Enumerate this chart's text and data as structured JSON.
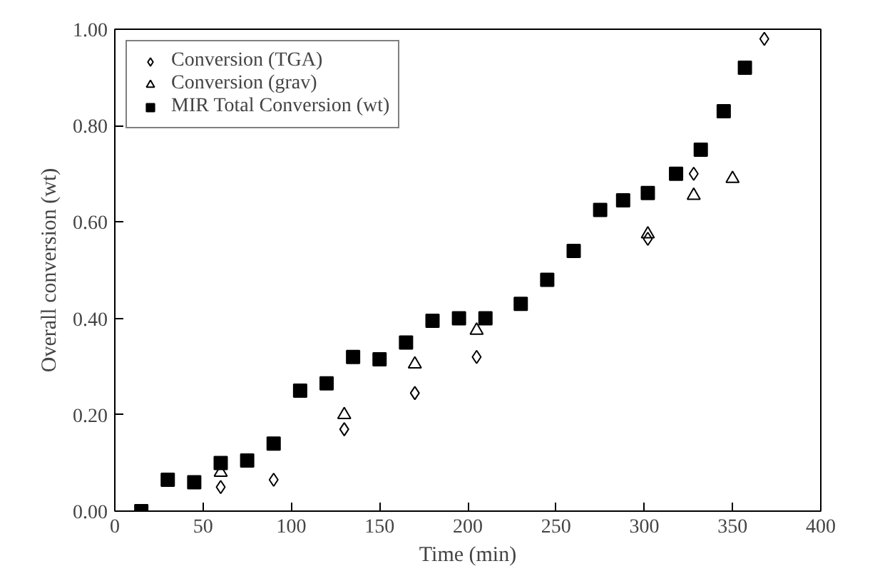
{
  "chart_data": {
    "type": "scatter",
    "xlabel": "Time (min)",
    "ylabel": "Overall conversion (wt)",
    "xlim": [
      0,
      400
    ],
    "ylim": [
      0,
      1
    ],
    "xticks": [
      0,
      50,
      100,
      150,
      200,
      250,
      300,
      350,
      400
    ],
    "yticks": [
      {
        "value": 0,
        "label": "0.00"
      },
      {
        "value": 0.2,
        "label": "0.20"
      },
      {
        "value": 0.4,
        "label": "0.40"
      },
      {
        "value": 0.6,
        "label": "0.60"
      },
      {
        "value": 0.8,
        "label": "0.80"
      },
      {
        "value": 1,
        "label": "1.00"
      }
    ],
    "grid": false,
    "legend": "top left",
    "series": [
      {
        "name": "Conversion (TGA)",
        "color": "#000000",
        "marker": "diamond",
        "x": [
          60,
          90,
          130,
          170,
          205,
          302,
          328,
          368
        ],
        "values": [
          0.05,
          0.065,
          0.17,
          0.245,
          0.32,
          0.565,
          0.7,
          0.98
        ]
      },
      {
        "name": "Conversion (grav)",
        "color": "#000000",
        "marker": "triangle",
        "x": [
          60,
          130,
          170,
          205,
          302,
          328,
          350
        ],
        "values": [
          0.08,
          0.2,
          0.305,
          0.375,
          0.575,
          0.655,
          0.69
        ]
      },
      {
        "name": "MIR Total Conversion (wt)",
        "color": "#000000",
        "marker": "square",
        "x": [
          15,
          30,
          45,
          60,
          75,
          90,
          105,
          120,
          135,
          150,
          165,
          180,
          195,
          210,
          230,
          245,
          260,
          275,
          288,
          302,
          318,
          332,
          345,
          357
        ],
        "values": [
          0.0,
          0.065,
          0.06,
          0.1,
          0.105,
          0.14,
          0.25,
          0.265,
          0.32,
          0.315,
          0.35,
          0.395,
          0.4,
          0.4,
          0.43,
          0.48,
          0.54,
          0.625,
          0.645,
          0.66,
          0.7,
          0.75,
          0.83,
          0.92
        ]
      }
    ]
  }
}
